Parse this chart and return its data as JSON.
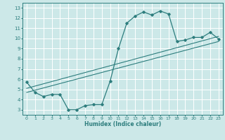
{
  "title": "",
  "xlabel": "Humidex (Indice chaleur)",
  "ylabel": "",
  "xlim": [
    -0.5,
    23.5
  ],
  "ylim": [
    2.5,
    13.5
  ],
  "xticks": [
    0,
    1,
    2,
    3,
    4,
    5,
    6,
    7,
    8,
    9,
    10,
    11,
    12,
    13,
    14,
    15,
    16,
    17,
    18,
    19,
    20,
    21,
    22,
    23
  ],
  "yticks": [
    3,
    4,
    5,
    6,
    7,
    8,
    9,
    10,
    11,
    12,
    13
  ],
  "bg_color": "#cce8e8",
  "line_color": "#2d7d7d",
  "grid_color": "#ffffff",
  "curve1_x": [
    0,
    1,
    2,
    3,
    4,
    5,
    6,
    7,
    8,
    9,
    10,
    11,
    12,
    13,
    14,
    15,
    16,
    17,
    18,
    19,
    20,
    21,
    22,
    23
  ],
  "curve1_y": [
    5.7,
    4.7,
    4.3,
    4.5,
    4.5,
    3.0,
    3.0,
    3.4,
    3.5,
    3.5,
    5.8,
    9.0,
    11.5,
    12.2,
    12.6,
    12.3,
    12.7,
    12.4,
    9.7,
    9.85,
    10.1,
    10.1,
    10.6,
    9.95
  ],
  "line2_x": [
    0,
    23
  ],
  "line2_y": [
    4.7,
    9.7
  ],
  "line3_x": [
    0,
    23
  ],
  "line3_y": [
    5.1,
    10.2
  ]
}
